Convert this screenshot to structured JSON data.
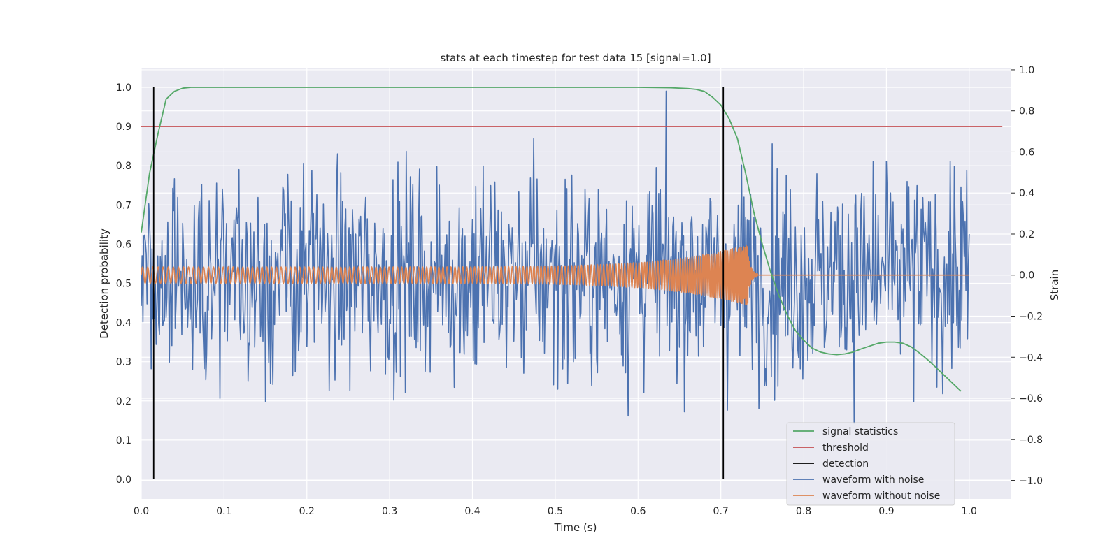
{
  "chart_data": {
    "type": "line",
    "title": "stats at each timestep for test data 15 [signal=1.0]",
    "xlabel": "Time (s)",
    "ylabel_left": "Detection probability",
    "ylabel_right": "Strain",
    "xlim": [
      0.0,
      1.05
    ],
    "ylim_left": [
      -0.05,
      1.05
    ],
    "ylim_right": [
      -1.09,
      1.01
    ],
    "x_ticks": [
      0.0,
      0.1,
      0.2,
      0.3,
      0.4,
      0.5,
      0.6,
      0.7,
      0.8,
      0.9,
      1.0
    ],
    "x_tick_labels": [
      "0.0",
      "0.1",
      "0.2",
      "0.3",
      "0.4",
      "0.5",
      "0.6",
      "0.7",
      "0.8",
      "0.9",
      "1.0"
    ],
    "y_left_ticks": [
      0.0,
      0.1,
      0.2,
      0.3,
      0.4,
      0.5,
      0.6,
      0.7,
      0.8,
      0.9,
      1.0
    ],
    "y_left_tick_labels": [
      "0.0",
      "0.1",
      "0.2",
      "0.3",
      "0.4",
      "0.5",
      "0.6",
      "0.7",
      "0.8",
      "0.9",
      "1.0"
    ],
    "y_right_ticks": [
      -1.0,
      -0.8,
      -0.6,
      -0.4,
      -0.2,
      0.0,
      0.2,
      0.4,
      0.6,
      0.8,
      1.0
    ],
    "y_right_tick_labels": [
      "−1.0",
      "−0.8",
      "−0.6",
      "−0.4",
      "−0.2",
      "0.0",
      "0.2",
      "0.4",
      "0.6",
      "0.8",
      "1.0"
    ],
    "grid": true,
    "legend_position": "lower-right",
    "background_color": "#eaeaf2",
    "series": [
      {
        "name": "signal statistics",
        "color": "#55a868",
        "axis": "left",
        "x": [
          0.0,
          0.01,
          0.02,
          0.03,
          0.04,
          0.05,
          0.06,
          0.08,
          0.1,
          0.2,
          0.3,
          0.4,
          0.5,
          0.6,
          0.64,
          0.66,
          0.67,
          0.68,
          0.69,
          0.7,
          0.71,
          0.72,
          0.73,
          0.74,
          0.75,
          0.76,
          0.77,
          0.78,
          0.79,
          0.8,
          0.81,
          0.82,
          0.83,
          0.84,
          0.85,
          0.86,
          0.87,
          0.88,
          0.89,
          0.9,
          0.91,
          0.92,
          0.93,
          0.94,
          0.95,
          0.96,
          0.97,
          0.98,
          0.99
        ],
        "y": [
          0.63,
          0.78,
          0.88,
          0.97,
          0.99,
          0.998,
          1.0,
          1.0,
          1.0,
          1.0,
          1.0,
          1.0,
          1.0,
          1.0,
          0.999,
          0.997,
          0.995,
          0.99,
          0.975,
          0.955,
          0.92,
          0.87,
          0.78,
          0.68,
          0.6,
          0.53,
          0.47,
          0.42,
          0.38,
          0.355,
          0.335,
          0.325,
          0.32,
          0.318,
          0.32,
          0.325,
          0.333,
          0.34,
          0.347,
          0.35,
          0.35,
          0.347,
          0.338,
          0.322,
          0.305,
          0.285,
          0.265,
          0.245,
          0.225
        ]
      },
      {
        "name": "threshold",
        "color": "#c44e52",
        "axis": "left",
        "x": [
          0.0,
          1.04
        ],
        "y": [
          0.9,
          0.9
        ]
      },
      {
        "name": "detection",
        "color": "#000000",
        "axis": "left",
        "vertical_lines_x": [
          0.015,
          0.703
        ],
        "y_range": [
          0.0,
          1.0
        ]
      },
      {
        "name": "waveform with noise",
        "color": "#4c72b0",
        "axis": "right",
        "description_of_values": "dense noisy strain samples, approx 1000 points over 0.0–1.0 s, amplitude roughly within -0.8 to 1.0",
        "x_start": 0.0,
        "x_end": 1.0
      },
      {
        "name": "waveform without noise",
        "color": "#dd8452",
        "axis": "right",
        "description_of_values": "chirp: oscillation of amplitude ~0.04 rising in frequency and amplitude (~0.15) until ~0.73 s, then flat at 0.0 until 1.0 s",
        "x_start": 0.0,
        "x_end": 1.0
      }
    ]
  }
}
